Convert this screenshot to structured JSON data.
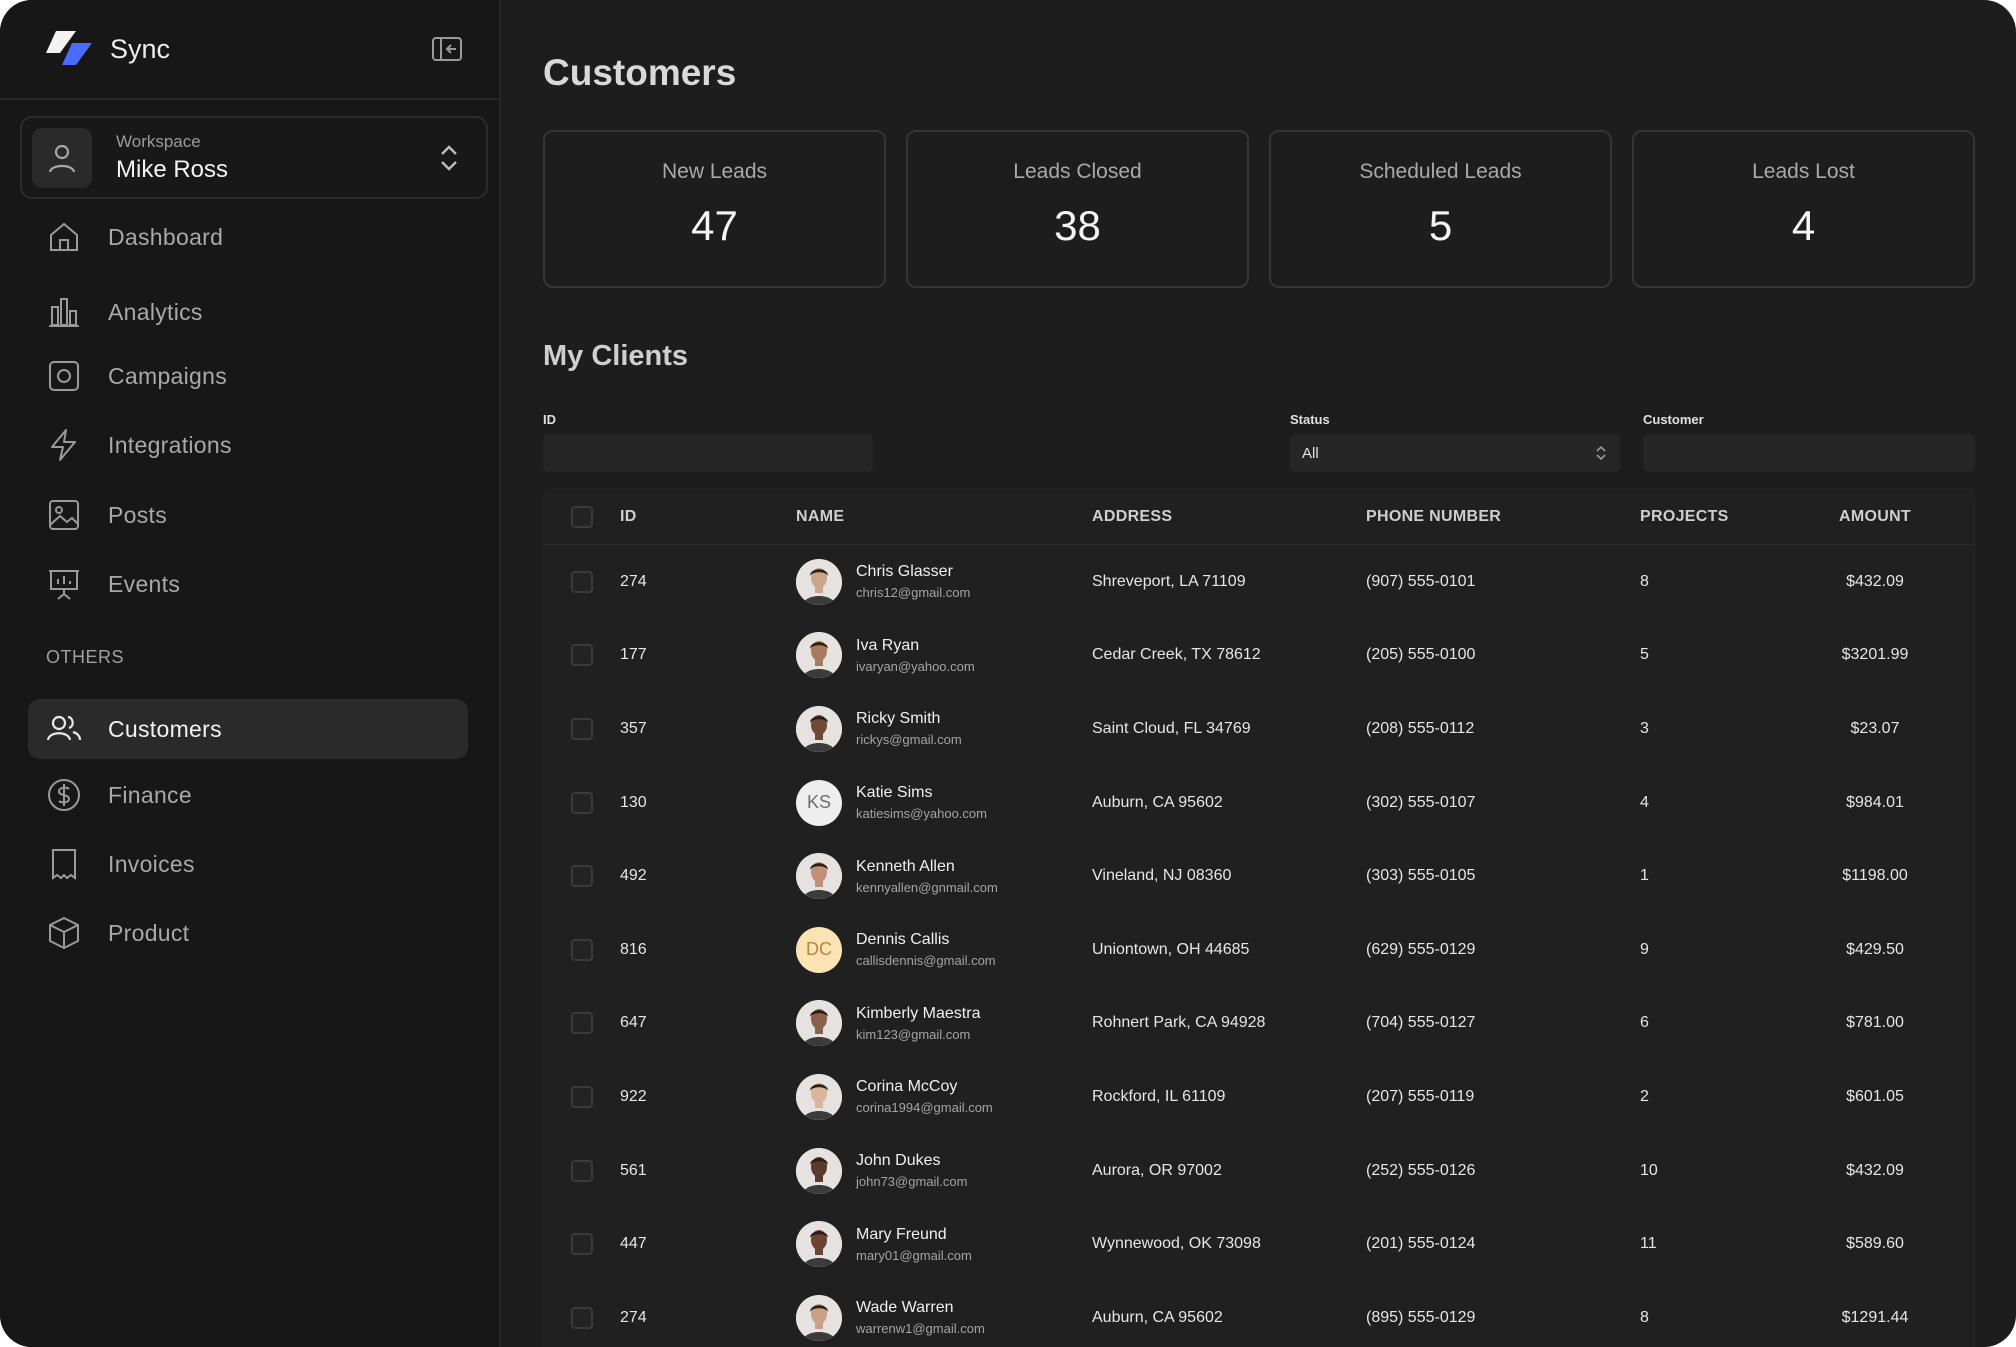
{
  "brand": {
    "name": "Sync",
    "accent": "#4b6bff"
  },
  "workspace": {
    "label": "Workspace",
    "name": "Mike Ross"
  },
  "nav": [
    {
      "label": "Dashboard",
      "icon": "home-icon"
    },
    {
      "label": "Analytics",
      "icon": "bar-chart-icon"
    },
    {
      "label": "Campaigns",
      "icon": "camera-square-icon"
    },
    {
      "label": "Integrations",
      "icon": "lightning-icon"
    },
    {
      "label": "Posts",
      "icon": "image-icon"
    },
    {
      "label": "Events",
      "icon": "presentation-icon"
    }
  ],
  "others_label": "OTHERS",
  "others": [
    {
      "label": "Customers",
      "icon": "users-icon",
      "active": true
    },
    {
      "label": "Finance",
      "icon": "dollar-circle-icon"
    },
    {
      "label": "Invoices",
      "icon": "receipt-icon"
    },
    {
      "label": "Product",
      "icon": "box-icon"
    }
  ],
  "page": {
    "title": "Customers"
  },
  "stats": [
    {
      "label": "New Leads",
      "value": "47"
    },
    {
      "label": "Leads Closed",
      "value": "38"
    },
    {
      "label": "Scheduled Leads",
      "value": "5"
    },
    {
      "label": "Leads Lost",
      "value": "4"
    }
  ],
  "clients": {
    "title": "My Clients",
    "filters": {
      "id_label": "ID",
      "id_value": "",
      "status_label": "Status",
      "status_value": "All",
      "customer_label": "Customer",
      "customer_value": ""
    },
    "columns": [
      "ID",
      "NAME",
      "ADDRESS",
      "PHONE NUMBER",
      "PROJECTS",
      "AMOUNT"
    ],
    "rows": [
      {
        "id": "274",
        "name": "Chris Glasser",
        "email": "chris12@gmail.com",
        "address": "Shreveport, LA 71109",
        "phone": "(907) 555-0101",
        "projects": "8",
        "amount": "$432.09",
        "avatar": "photo",
        "skin": "#c9a58c"
      },
      {
        "id": "177",
        "name": "Iva Ryan",
        "email": "ivaryan@yahoo.com",
        "address": "Cedar Creek, TX 78612",
        "phone": "(205) 555-0100",
        "projects": "5",
        "amount": "$3201.99",
        "avatar": "photo",
        "skin": "#a97b5e"
      },
      {
        "id": "357",
        "name": "Ricky Smith",
        "email": "rickys@gmail.com",
        "address": "Saint Cloud, FL 34769",
        "phone": "(208) 555-0112",
        "projects": "3",
        "amount": "$23.07",
        "avatar": "photo",
        "skin": "#6e4a36"
      },
      {
        "id": "130",
        "name": "Katie Sims",
        "email": "katiesims@yahoo.com",
        "address": "Auburn, CA 95602",
        "phone": "(302) 555-0107",
        "projects": "4",
        "amount": "$984.01",
        "avatar": "initials",
        "initials": "KS"
      },
      {
        "id": "492",
        "name": "Kenneth Allen",
        "email": "kennyallen@gnmail.com",
        "address": "Vineland, NJ 08360",
        "phone": "(303) 555-0105",
        "projects": "1",
        "amount": "$1198.00",
        "avatar": "photo",
        "skin": "#c19077"
      },
      {
        "id": "816",
        "name": "Dennis Callis",
        "email": "callisdennis@gmail.com",
        "address": "Uniontown, OH 44685",
        "phone": "(629) 555-0129",
        "projects": "9",
        "amount": "$429.50",
        "avatar": "initials",
        "initials": "DC"
      },
      {
        "id": "647",
        "name": "Kimberly Maestra",
        "email": "kim123@gmail.com",
        "address": "Rohnert Park, CA 94928",
        "phone": "(704) 555-0127",
        "projects": "6",
        "amount": "$781.00",
        "avatar": "photo",
        "skin": "#8a6249"
      },
      {
        "id": "922",
        "name": "Corina McCoy",
        "email": "corina1994@gmail.com",
        "address": "Rockford, IL 61109",
        "phone": "(207) 555-0119",
        "projects": "2",
        "amount": "$601.05",
        "avatar": "photo",
        "skin": "#d8b59c"
      },
      {
        "id": "561",
        "name": "John Dukes",
        "email": "john73@gmail.com",
        "address": "Aurora, OR 97002",
        "phone": "(252) 555-0126",
        "projects": "10",
        "amount": "$432.09",
        "avatar": "photo",
        "skin": "#5a3a2a"
      },
      {
        "id": "447",
        "name": "Mary Freund",
        "email": "mary01@gmail.com",
        "address": "Wynnewood, OK 73098",
        "phone": "(201) 555-0124",
        "projects": "11",
        "amount": "$589.60",
        "avatar": "photo",
        "skin": "#6b4532"
      },
      {
        "id": "274",
        "name": "Wade Warren",
        "email": "warrenw1@gmail.com",
        "address": "Auburn, CA 95602",
        "phone": "(895) 555-0129",
        "projects": "8",
        "amount": "$1291.44",
        "avatar": "photo",
        "skin": "#c9a088"
      }
    ]
  }
}
